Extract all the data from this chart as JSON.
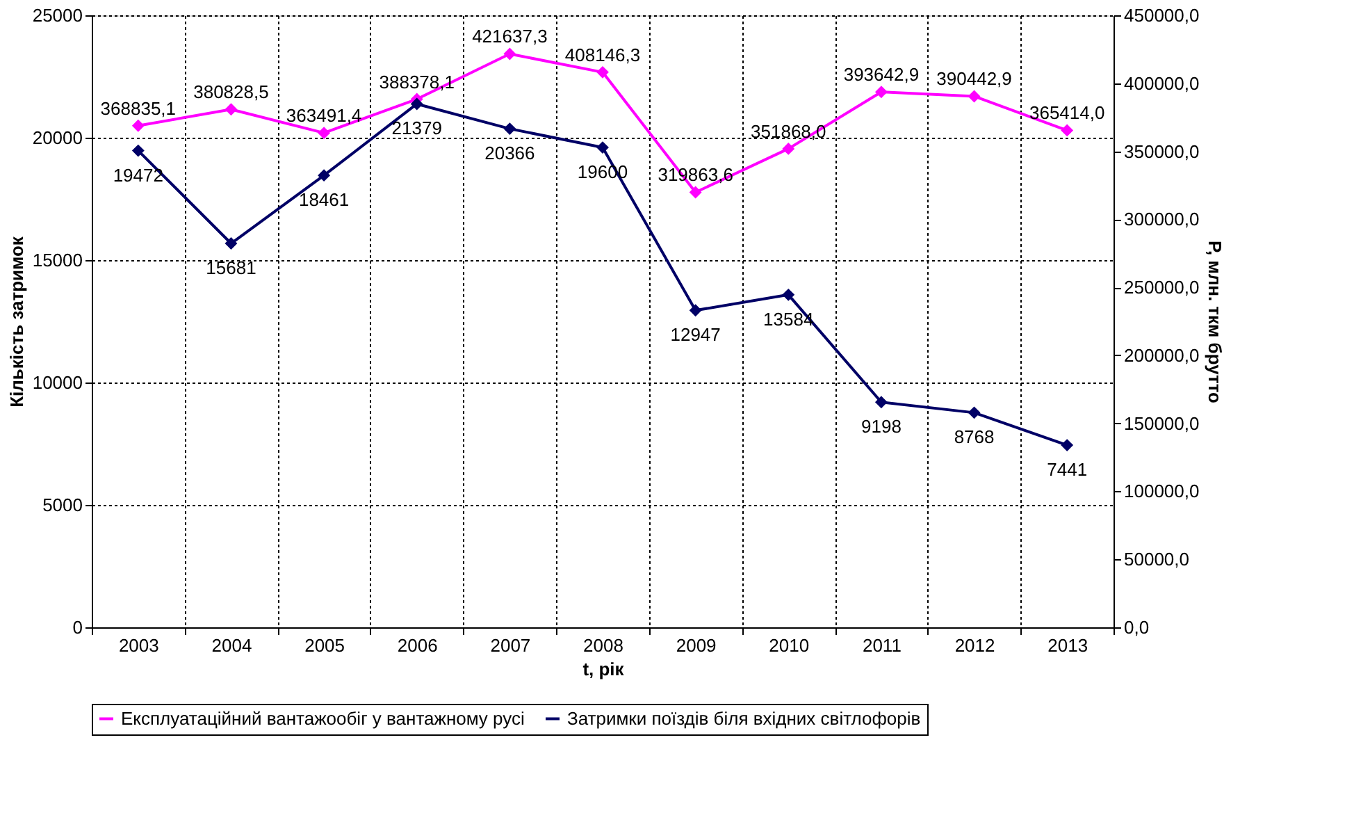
{
  "chart_data": {
    "type": "line",
    "xlabel": "t, рік",
    "ylabel": "Кількість затримок",
    "y2label": "P, млн. ткм брутто",
    "categories": [
      "2003",
      "2004",
      "2005",
      "2006",
      "2007",
      "2008",
      "2009",
      "2010",
      "2011",
      "2012",
      "2013"
    ],
    "series": [
      {
        "name": "Експлуатаційний вантажообіг у вантажному русі",
        "color": "#ff00ff",
        "axis": "y2",
        "values": [
          368835.1,
          380828.5,
          363491.4,
          388378.1,
          421637.3,
          408146.3,
          319863.6,
          351868.0,
          393642.9,
          390442.9,
          365414.0
        ],
        "value_labels": [
          "368835,1",
          "380828,5",
          "363491,4",
          "388378,1",
          "421637,3",
          "408146,3",
          "319863,6",
          "351868,0",
          "393642,9",
          "390442,9",
          "365414,0"
        ]
      },
      {
        "name": "Затримки поїздів біля вхідних світлофорів",
        "color": "#000066",
        "axis": "y",
        "values": [
          19472,
          15681,
          18461,
          21379,
          20366,
          19600,
          12947,
          13584,
          9198,
          8768,
          7441
        ],
        "value_labels": [
          "19472",
          "15681",
          "18461",
          "21379",
          "20366",
          "19600",
          "12947",
          "13584",
          "9198",
          "8768",
          "7441"
        ]
      }
    ],
    "ylim": [
      0,
      25000
    ],
    "yticks": [
      0,
      5000,
      10000,
      15000,
      20000,
      25000
    ],
    "y2lim": [
      0,
      450000
    ],
    "y2ticks": [
      {
        "value": 0,
        "label": "0,0"
      },
      {
        "value": 50000,
        "label": "50000,0"
      },
      {
        "value": 100000,
        "label": "100000,0"
      },
      {
        "value": 150000,
        "label": "150000,0"
      },
      {
        "value": 200000,
        "label": "200000,0"
      },
      {
        "value": 250000,
        "label": "250000,0"
      },
      {
        "value": 300000,
        "label": "300000,0"
      },
      {
        "value": 350000,
        "label": "350000,0"
      },
      {
        "value": 400000,
        "label": "400000,0"
      },
      {
        "value": 450000,
        "label": "450000,0"
      }
    ],
    "grid": true,
    "legend": "bottom",
    "marker": "diamond",
    "line_style": "solid"
  }
}
